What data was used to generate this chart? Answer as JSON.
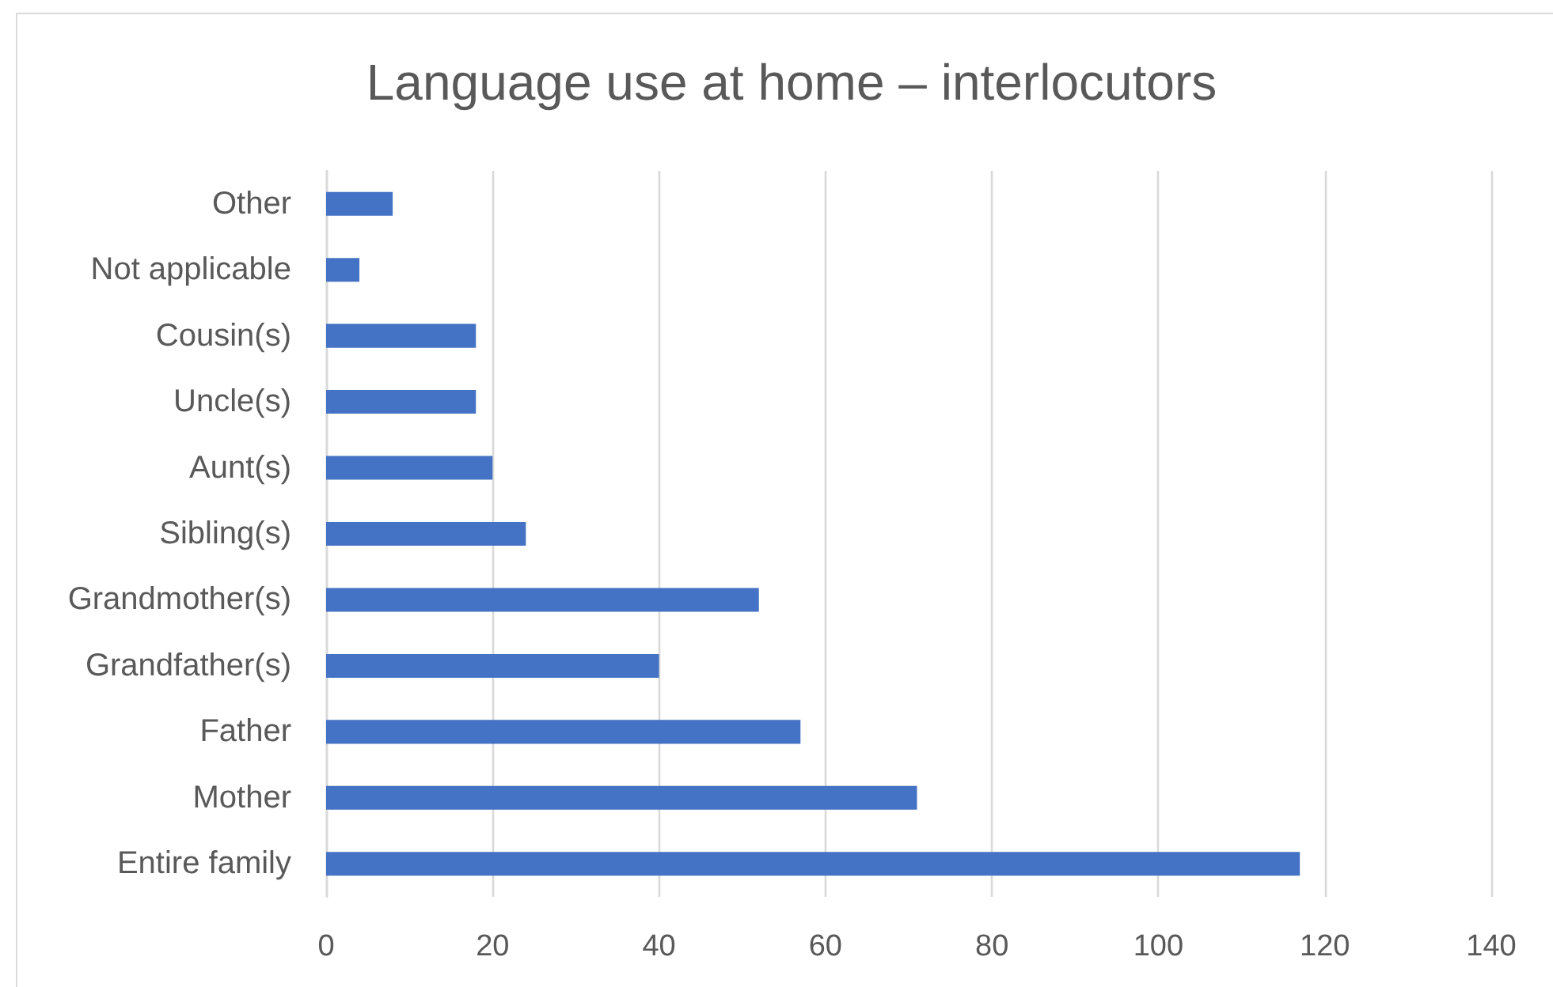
{
  "chart_data": {
    "type": "bar",
    "orientation": "horizontal",
    "title": "Language use at home – interlocutors",
    "categories": [
      "Other",
      "Not applicable",
      "Cousin(s)",
      "Uncle(s)",
      "Aunt(s)",
      "Sibling(s)",
      "Grandmother(s)",
      "Grandfather(s)",
      "Father",
      "Mother",
      "Entire family"
    ],
    "values": [
      8,
      4,
      18,
      18,
      20,
      24,
      52,
      40,
      57,
      71,
      117
    ],
    "color": "#4472c4",
    "xlim": [
      0,
      140
    ],
    "xticks": [
      0,
      20,
      40,
      60,
      80,
      100,
      120,
      140
    ],
    "grid": "x"
  }
}
